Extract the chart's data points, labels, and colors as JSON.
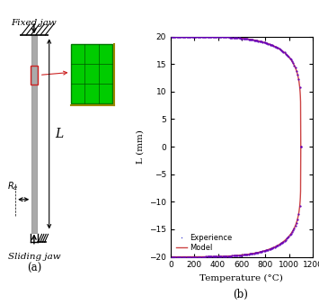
{
  "title_a": "(a)",
  "title_b": "(b)",
  "xlabel": "Temperature (°C)",
  "ylabel": "L (mm)",
  "xlim": [
    0,
    1200
  ],
  "ylim": [
    -20,
    20
  ],
  "xticks": [
    0,
    200,
    400,
    600,
    800,
    1000,
    1200
  ],
  "yticks": [
    -20,
    -15,
    -10,
    -5,
    0,
    5,
    10,
    15,
    20
  ],
  "legend_experience": "Experience",
  "legend_model": "Model",
  "experience_color": "#6600bb",
  "model_color": "#cc4444",
  "experience_dot_color": "#3333cc",
  "background_color": "#ffffff",
  "fixed_jaw_label": "Fixed jaw",
  "sliding_jaw_label": "Sliding jaw",
  "L_label": "L",
  "Re_label": "$R_e$",
  "rod_color": "#aaaaaa",
  "rod_edge_color": "#888888"
}
